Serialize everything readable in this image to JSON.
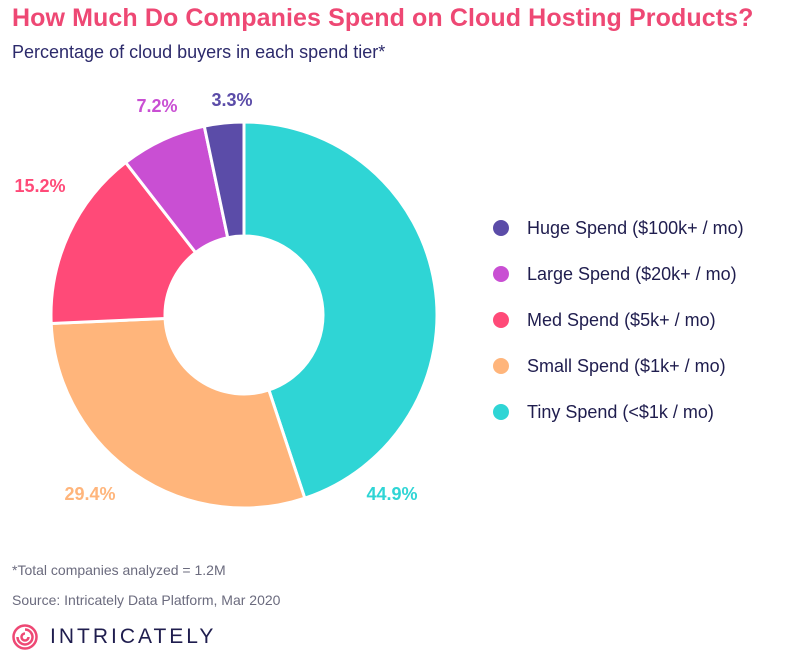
{
  "title": "How Much Do Companies Spend on Cloud Hosting Products?",
  "subtitle": "Percentage of cloud buyers in each spend tier*",
  "footnote": "*Total companies analyzed = 1.2M",
  "source": "Source: Intricately Data Platform, Mar 2020",
  "brand": {
    "name": "INTRICATELY",
    "icon": "intricately-logo-icon",
    "color": "#ee4874"
  },
  "chart_data": {
    "type": "pie",
    "style": "donut",
    "title": "How Much Do Companies Spend on Cloud Hosting Products?",
    "subtitle": "Percentage of cloud buyers in each spend tier*",
    "legend_position": "right",
    "slices": [
      {
        "name": "Huge Spend ($100k+ / mo)",
        "value": 3.3,
        "label": "3.3%",
        "color": "#5b4ca8"
      },
      {
        "name": "Large Spend ($20k+ / mo)",
        "value": 7.2,
        "label": "7.2%",
        "color": "#c94fd3"
      },
      {
        "name": "Med Spend ($5k+ / mo)",
        "value": 15.2,
        "label": "15.2%",
        "color": "#ff4a78"
      },
      {
        "name": "Small Spend ($1k+ / mo)",
        "value": 29.4,
        "label": "29.4%",
        "color": "#ffb57b"
      },
      {
        "name": "Tiny Spend (<$1k / mo)",
        "value": 44.9,
        "label": "44.9%",
        "color": "#2fd5d5"
      }
    ]
  }
}
